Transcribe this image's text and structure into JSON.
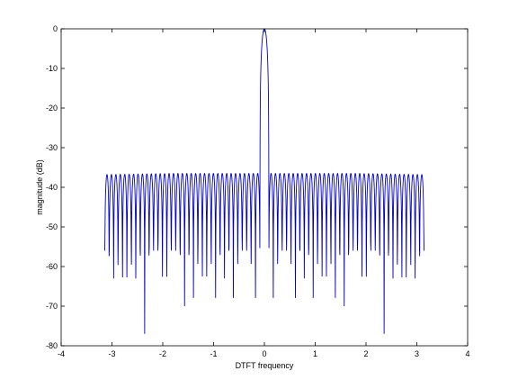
{
  "chart_data": {
    "type": "line",
    "title": "",
    "xlabel": "DTFT frequency",
    "ylabel": "magnitude (dB)",
    "xlim": [
      -4,
      4
    ],
    "ylim": [
      -80,
      0
    ],
    "xticks": [
      -4,
      -3,
      -2,
      -1,
      0,
      1,
      2,
      3,
      4
    ],
    "yticks": [
      0,
      -10,
      -20,
      -30,
      -40,
      -50,
      -60,
      -70,
      -80
    ],
    "x_tick_labels": [
      "-4",
      "-3",
      "-2",
      "-1",
      "0",
      "1",
      "2",
      "3",
      "4"
    ],
    "y_tick_labels": [
      "0",
      "-10",
      "-20",
      "-30",
      "-40",
      "-50",
      "-60",
      "-70",
      "-80"
    ],
    "grid": false,
    "series_color": "#0000cc",
    "x_range": [
      -3.1416,
      3.1416
    ],
    "num_lobes_each_side": 35,
    "sidelobe_floor_db": -36.5
  }
}
